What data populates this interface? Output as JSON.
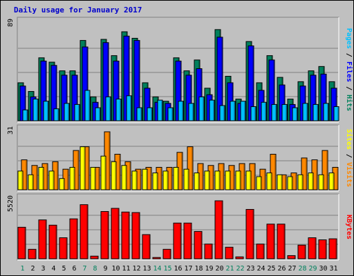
{
  "chart_data": {
    "type": "bar",
    "title": "Daily usage for January 2017",
    "categories": [
      "1",
      "2",
      "3",
      "4",
      "5",
      "6",
      "7",
      "8",
      "9",
      "10",
      "11",
      "12",
      "13",
      "14",
      "15",
      "16",
      "17",
      "18",
      "19",
      "20",
      "21",
      "22",
      "23",
      "24",
      "25",
      "26",
      "27",
      "28",
      "29",
      "30",
      "31"
    ],
    "weekend_days": [
      1,
      7,
      8,
      14,
      15,
      21,
      22,
      28,
      29
    ],
    "panels": {
      "top": {
        "ymax_label": "89",
        "ylim": [
          0,
          89
        ],
        "right_label": [
          "Pages",
          " / ",
          "Files",
          " / ",
          "Hits"
        ],
        "series": [
          {
            "name": "Hits",
            "color": "#00805c",
            "values": [
              35,
              27,
              58,
              54,
              46,
              46,
              74,
              22,
              75,
              60,
              82,
              76,
              35,
              22,
              18,
              58,
              46,
              56,
              30,
              84,
              41,
              20,
              73,
              35,
              60,
              40,
              20,
              36,
              46,
              50,
              36
            ]
          },
          {
            "name": "Files",
            "color": "#0000ff",
            "values": [
              32,
              22,
              55,
              51,
              42,
              42,
              68,
              17,
              72,
              55,
              78,
              74,
              30,
              17,
              16,
              55,
              42,
              48,
              24,
              77,
              35,
              16,
              69,
              28,
              56,
              33,
              15,
              32,
              42,
              43,
              30
            ]
          },
          {
            "name": "Pages",
            "color": "#00c0ff",
            "values": [
              10,
              20,
              18,
              11,
              16,
              15,
              28,
              12,
              22,
              20,
              23,
              12,
              12,
              19,
              12,
              18,
              16,
              22,
              19,
              14,
              18,
              18,
              13,
              17,
              15,
              15,
              12,
              16,
              15,
              16,
              13
            ]
          }
        ]
      },
      "middle": {
        "ymax_label": "31",
        "ylim": [
          0,
          31
        ],
        "right_label": [
          "Sites",
          " / ",
          "Visits"
        ],
        "series": [
          {
            "name": "Visits",
            "color": "#ff8800",
            "values": [
              16,
              13,
              14,
              15,
              11,
              21,
              23,
              12,
              31,
              19,
              15,
              11,
              12,
              12,
              12,
              20,
              23,
              14,
              13,
              14,
              13,
              14,
              14,
              11,
              19,
              8,
              9,
              17,
              16,
              21,
              12
            ]
          },
          {
            "name": "Sites",
            "color": "#ffff00",
            "values": [
              10,
              8,
              12,
              10,
              6,
              12,
              23,
              12,
              18,
              15,
              13,
              10,
              11,
              9,
              10,
              12,
              11,
              9,
              10,
              10,
              10,
              10,
              10,
              7,
              9,
              8,
              7,
              8,
              9,
              8,
              9
            ]
          }
        ]
      },
      "bottom": {
        "ymax_label": "5520",
        "ylim": [
          0,
          5520
        ],
        "right_label": [
          "KBytes"
        ],
        "series": [
          {
            "name": "KBytes",
            "color": "#ff0000",
            "values": [
              3000,
              900,
              3700,
              3200,
              2000,
              3800,
              5150,
              250,
              4500,
              4800,
              4450,
              4400,
              2300,
              120,
              900,
              3400,
              3400,
              2600,
              1400,
              5520,
              1100,
              180,
              4700,
              1400,
              3300,
              3300,
              300,
              1300,
              2000,
              1800,
              1900
            ]
          }
        ]
      }
    }
  }
}
